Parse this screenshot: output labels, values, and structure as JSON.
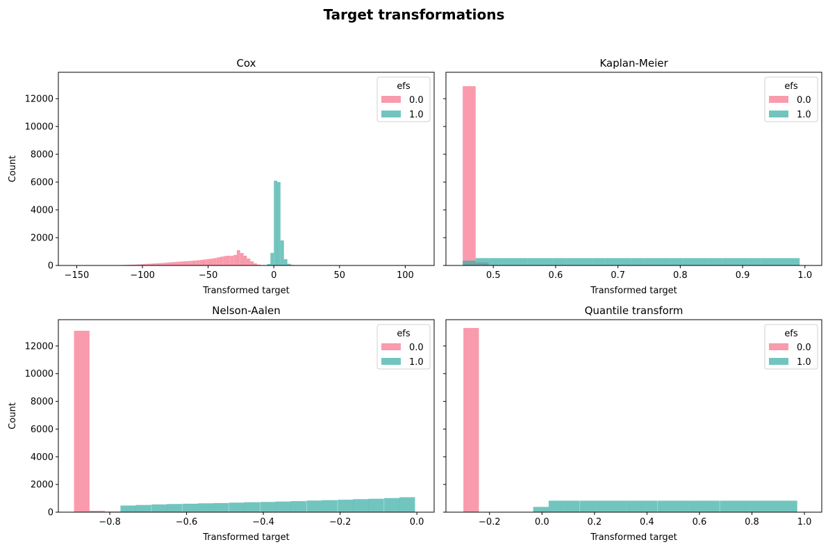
{
  "suptitle": "Target transformations",
  "colors": {
    "s0": "#f77189",
    "s1": "#36ada4"
  },
  "chart_data": [
    {
      "type": "bar",
      "title": "Cox",
      "xlabel": "Transformed target",
      "ylabel": "Count",
      "xlim": [
        -164,
        122
      ],
      "ylim": [
        0,
        13900
      ],
      "xticks": [
        -150,
        -100,
        -50,
        0,
        50,
        100
      ],
      "xtick_labels": [
        "−150",
        "−100",
        "−50",
        "0",
        "50",
        "100"
      ],
      "yticks": [
        0,
        2000,
        4000,
        6000,
        8000,
        10000,
        12000
      ],
      "ytick_labels": [
        "0",
        "2000",
        "4000",
        "6000",
        "8000",
        "10000",
        "12000"
      ],
      "legend": {
        "title": "efs",
        "labels": [
          "0.0",
          "1.0"
        ],
        "placement": "upper right"
      },
      "series": [
        {
          "name": "0.0",
          "bin_width": 2.56,
          "x": [
            -121.6,
            -119,
            -116.5,
            -113.9,
            -111.4,
            -108.8,
            -106.2,
            -103.7,
            -101.1,
            -98.6,
            -96,
            -93.4,
            -90.9,
            -88.3,
            -85.8,
            -83.2,
            -80.6,
            -78.1,
            -75.5,
            -73,
            -70.4,
            -67.8,
            -65.3,
            -62.7,
            -60.2,
            -57.6,
            -55,
            -52.5,
            -49.9,
            -47.4,
            -44.8,
            -42.2,
            -39.7,
            -37.1,
            -34.6,
            -32,
            -29.4,
            -26.9,
            -24.3,
            -21.8,
            -19.2,
            -16.6,
            -14.1,
            -11.5,
            -9,
            -6.4,
            -3.8,
            -1.3
          ],
          "values": [
            15,
            20,
            25,
            35,
            45,
            55,
            60,
            75,
            85,
            110,
            120,
            130,
            145,
            160,
            175,
            190,
            215,
            230,
            250,
            265,
            285,
            300,
            315,
            330,
            350,
            375,
            400,
            430,
            460,
            490,
            530,
            580,
            630,
            680,
            700,
            690,
            760,
            1100,
            900,
            700,
            500,
            300,
            150,
            60,
            25,
            12,
            5,
            2
          ]
        },
        {
          "name": "1.0",
          "bin_width": 2.56,
          "x": [
            -3.8,
            -1.3,
            1.3,
            3.8,
            6.4,
            9,
            11.5,
            14.1,
            16.6
          ],
          "values": [
            100,
            900,
            6100,
            6000,
            1800,
            450,
            120,
            40,
            10
          ]
        }
      ]
    },
    {
      "type": "bar",
      "title": "Kaplan-Meier",
      "xlabel": "Transformed target",
      "ylabel": "",
      "xlim": [
        0.424,
        1.027
      ],
      "ylim": [
        0,
        13900
      ],
      "xticks": [
        0.5,
        0.6,
        0.7,
        0.8,
        0.9,
        1.0
      ],
      "xtick_labels": [
        "0.5",
        "0.6",
        "0.7",
        "0.8",
        "0.9",
        "1.0"
      ],
      "yticks": [
        0,
        2000,
        4000,
        6000,
        8000,
        10000,
        12000
      ],
      "ytick_labels": [
        "",
        "",
        "",
        "",
        "",
        "",
        ""
      ],
      "legend": {
        "title": "efs",
        "labels": [
          "0.0",
          "1.0"
        ],
        "placement": "upper right"
      },
      "series": [
        {
          "name": "0.0",
          "bin_width": 0.0208,
          "x": [
            0.4613,
            0.4821
          ],
          "values": [
            12900,
            220
          ]
        },
        {
          "name": "1.0",
          "bin_width": 0.0208,
          "x": [
            0.4613,
            0.4821,
            0.5029,
            0.5237,
            0.5444,
            0.5652,
            0.586,
            0.6068,
            0.6276,
            0.6484,
            0.6692,
            0.69,
            0.7108,
            0.7316,
            0.7524,
            0.7732,
            0.794,
            0.8148,
            0.8356,
            0.8564,
            0.8772,
            0.898,
            0.9188,
            0.9396,
            0.9604,
            0.9812
          ],
          "values": [
            350,
            530,
            530,
            530,
            530,
            530,
            530,
            530,
            530,
            530,
            530,
            530,
            530,
            530,
            530,
            530,
            530,
            530,
            530,
            530,
            530,
            530,
            530,
            530,
            530,
            530
          ]
        }
      ]
    },
    {
      "type": "bar",
      "title": "Nelson-Aalen",
      "xlabel": "Transformed target",
      "ylabel": "Count",
      "xlim": [
        -0.934,
        0.045
      ],
      "ylim": [
        0,
        13900
      ],
      "xticks": [
        -0.8,
        -0.6,
        -0.4,
        -0.2,
        0.0
      ],
      "xtick_labels": [
        "−0.8",
        "−0.6",
        "−0.4",
        "−0.2",
        "0.0"
      ],
      "yticks": [
        0,
        2000,
        4000,
        6000,
        8000,
        10000,
        12000
      ],
      "ytick_labels": [
        "0",
        "2000",
        "4000",
        "6000",
        "8000",
        "10000",
        "12000"
      ],
      "legend": {
        "title": "efs",
        "labels": [
          "0.0",
          "1.0"
        ],
        "placement": "upper right"
      },
      "series": [
        {
          "name": "0.0",
          "bin_width": 0.0404,
          "x": [
            -0.873,
            -0.833,
            -0.792,
            -0.752
          ],
          "values": [
            13100,
            100,
            50,
            20
          ]
        },
        {
          "name": "1.0",
          "bin_width": 0.0404,
          "x": [
            -0.752,
            -0.712,
            -0.671,
            -0.631,
            -0.59,
            -0.55,
            -0.51,
            -0.469,
            -0.429,
            -0.388,
            -0.348,
            -0.308,
            -0.267,
            -0.227,
            -0.186,
            -0.146,
            -0.106,
            -0.065,
            -0.025
          ],
          "values": [
            480,
            520,
            560,
            590,
            610,
            640,
            660,
            690,
            720,
            740,
            770,
            800,
            840,
            870,
            900,
            940,
            970,
            1020,
            1080
          ]
        }
      ]
    },
    {
      "type": "bar",
      "title": "Quantile transform",
      "xlabel": "Transformed target",
      "ylabel": "",
      "xlim": [
        -0.366,
        1.066
      ],
      "ylim": [
        0,
        13900
      ],
      "xticks": [
        -0.2,
        0.0,
        0.2,
        0.4,
        0.6,
        0.8,
        1.0
      ],
      "xtick_labels": [
        "−0.2",
        "0.0",
        "0.2",
        "0.4",
        "0.6",
        "0.8",
        "1.0"
      ],
      "yticks": [
        0,
        2000,
        4000,
        6000,
        8000,
        10000,
        12000
      ],
      "ytick_labels": [
        "",
        "",
        "",
        "",
        "",
        "",
        ""
      ],
      "legend": {
        "title": "efs",
        "labels": [
          "0.0",
          "1.0"
        ],
        "placement": "upper right"
      },
      "series": [
        {
          "name": "0.0",
          "bin_width": 0.0592,
          "x": [
            -0.27
          ],
          "values": [
            13300
          ]
        },
        {
          "name": "1.0",
          "bin_width": 0.0592,
          "x": [
            -0.004,
            0.055,
            0.114,
            0.174,
            0.233,
            0.292,
            0.351,
            0.41,
            0.47,
            0.529,
            0.588,
            0.647,
            0.707,
            0.766,
            0.825,
            0.884,
            0.943
          ],
          "values": [
            380,
            830,
            830,
            830,
            830,
            830,
            830,
            830,
            830,
            830,
            830,
            830,
            830,
            830,
            830,
            830,
            830
          ]
        }
      ]
    }
  ]
}
